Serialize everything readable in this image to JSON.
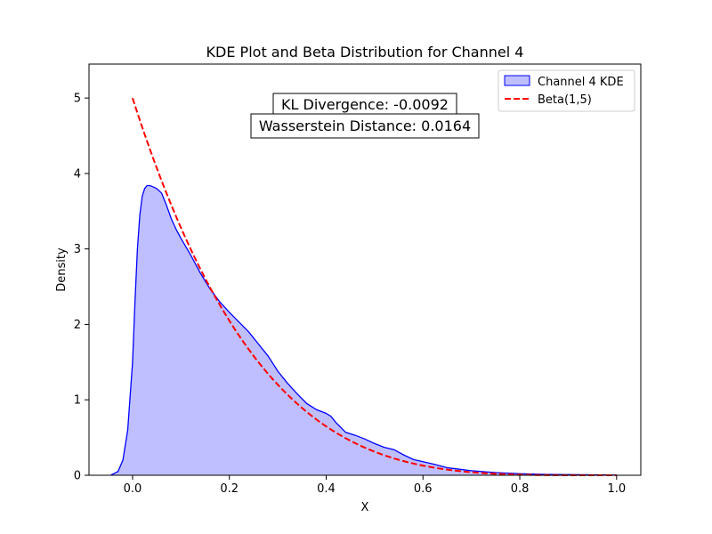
{
  "chart_data": {
    "type": "area",
    "title": "KDE Plot and Beta Distribution for Channel 4",
    "xlabel": "X",
    "ylabel": "Density",
    "xlim": [
      -0.09,
      1.05
    ],
    "ylim": [
      0,
      5.45
    ],
    "xticks": [
      0.0,
      0.2,
      0.4,
      0.6,
      0.8,
      1.0
    ],
    "xtick_labels": [
      "0.0",
      "0.2",
      "0.4",
      "0.6",
      "0.8",
      "1.0"
    ],
    "yticks": [
      0,
      1,
      2,
      3,
      4,
      5
    ],
    "ytick_labels": [
      "0",
      "1",
      "2",
      "3",
      "4",
      "5"
    ],
    "grid": false,
    "legend_position": "top-right",
    "series": [
      {
        "name": "Channel 4 KDE",
        "kind": "kde-area",
        "color": "#0000ff",
        "fill": "#bfbfff",
        "x": [
          -0.045,
          -0.03,
          -0.02,
          -0.01,
          0.0,
          0.005,
          0.01,
          0.015,
          0.02,
          0.025,
          0.03,
          0.035,
          0.04,
          0.05,
          0.06,
          0.07,
          0.08,
          0.09,
          0.1,
          0.12,
          0.14,
          0.16,
          0.18,
          0.2,
          0.22,
          0.24,
          0.26,
          0.28,
          0.3,
          0.32,
          0.34,
          0.36,
          0.38,
          0.4,
          0.41,
          0.42,
          0.44,
          0.46,
          0.48,
          0.5,
          0.52,
          0.54,
          0.56,
          0.58,
          0.6,
          0.62,
          0.65,
          0.7,
          0.75,
          0.8,
          0.85,
          0.9,
          0.95,
          1.0
        ],
        "y": [
          0.0,
          0.05,
          0.2,
          0.6,
          1.5,
          2.3,
          3.0,
          3.45,
          3.7,
          3.8,
          3.84,
          3.84,
          3.83,
          3.8,
          3.74,
          3.58,
          3.4,
          3.26,
          3.14,
          2.92,
          2.68,
          2.47,
          2.3,
          2.16,
          2.03,
          1.9,
          1.74,
          1.58,
          1.38,
          1.22,
          1.08,
          0.95,
          0.87,
          0.82,
          0.78,
          0.7,
          0.57,
          0.53,
          0.48,
          0.42,
          0.37,
          0.34,
          0.27,
          0.21,
          0.18,
          0.15,
          0.1,
          0.06,
          0.035,
          0.02,
          0.012,
          0.008,
          0.005,
          0.003
        ]
      },
      {
        "name": "Beta(1,5)",
        "kind": "dashed-line",
        "color": "#ff0000",
        "function": "beta_pdf",
        "params": [
          1,
          5
        ],
        "x_range": [
          0.0,
          1.0
        ]
      }
    ],
    "annotations": [
      {
        "text": "KL Divergence: -0.0092"
      },
      {
        "text": "Wasserstein Distance: 0.0164"
      }
    ]
  }
}
